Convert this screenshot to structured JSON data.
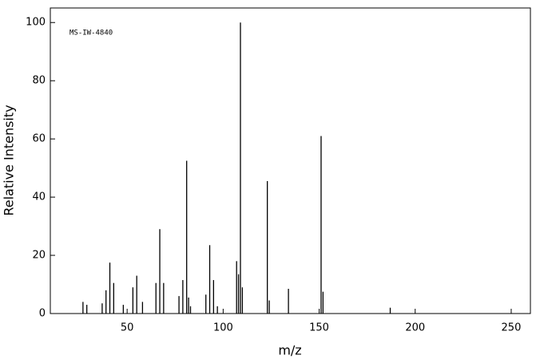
{
  "chart_data": {
    "type": "stem",
    "annotation": "MS-IW-4840",
    "x_label": "m/z",
    "y_label": "Relative Intensity",
    "color": "#000000",
    "x": [
      27,
      29,
      37,
      39,
      41,
      43,
      48,
      53,
      55,
      58,
      65,
      67,
      69,
      77,
      79,
      81,
      82,
      83,
      91,
      93,
      95,
      97,
      107,
      108,
      109,
      110,
      123,
      124,
      134,
      151,
      152,
      187
    ],
    "values": [
      4,
      3,
      3.5,
      8,
      17.5,
      10.5,
      3,
      9,
      13,
      4,
      10.5,
      29,
      10.5,
      6,
      11.5,
      52.5,
      5.5,
      2.5,
      6.5,
      23.5,
      11.5,
      2.5,
      18,
      13.5,
      100,
      9,
      45.5,
      4.5,
      8.5,
      61,
      7.5,
      2
    ],
    "xlim": [
      10,
      260
    ],
    "xticks": [
      50,
      100,
      150,
      200,
      250
    ],
    "ylim": [
      0,
      105
    ],
    "yticks": [
      0,
      20,
      40,
      60,
      80,
      100
    ]
  }
}
